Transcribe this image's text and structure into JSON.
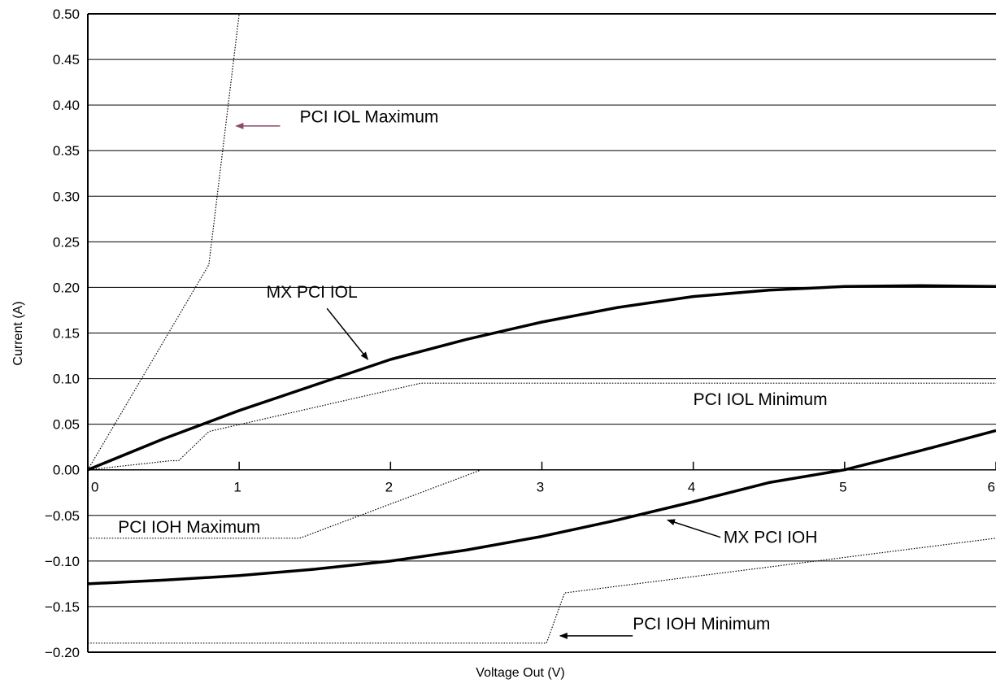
{
  "chart_data": {
    "type": "line",
    "title": "",
    "xlabel": "Voltage Out (V)",
    "ylabel": "Current (A)",
    "xlim": [
      0,
      6
    ],
    "ylim": [
      -0.2,
      0.5
    ],
    "x_ticks": [
      0,
      1,
      2,
      3,
      4,
      5,
      6
    ],
    "x_tick_labels": [
      "0",
      "1",
      "2",
      "3",
      "4",
      "5",
      "6"
    ],
    "y_ticks": [
      0.5,
      0.45,
      0.4,
      0.35,
      0.3,
      0.25,
      0.2,
      0.15,
      0.1,
      0.05,
      0.0,
      -0.05,
      -0.1,
      -0.15,
      -0.2
    ],
    "y_tick_labels": [
      "0.50",
      "0.45",
      "0.40",
      "0.35",
      "0.30",
      "0.25",
      "0.20",
      "0.15",
      "0.10",
      "0.05",
      "0.00",
      "−0.05",
      "−0.10",
      "−0.15",
      "−0.20"
    ],
    "grid": "horizontal",
    "series": [
      {
        "name": "PCI IOL Maximum",
        "style": "dotted",
        "x": [
          0,
          0.8,
          1.0
        ],
        "y": [
          0,
          0.225,
          0.5
        ]
      },
      {
        "name": "MX PCI IOL",
        "style": "solid-bold",
        "x": [
          0,
          0.5,
          1.0,
          1.5,
          2.0,
          2.5,
          3.0,
          3.5,
          4.0,
          4.5,
          5.0,
          5.5,
          6.0
        ],
        "y": [
          0,
          0.034,
          0.065,
          0.093,
          0.121,
          0.143,
          0.162,
          0.178,
          0.19,
          0.197,
          0.201,
          0.202,
          0.201
        ]
      },
      {
        "name": "PCI IOL Minimum",
        "style": "dotted",
        "x": [
          0,
          0.55,
          0.6,
          0.8,
          2.2,
          6.0
        ],
        "y": [
          0,
          0.01,
          0.01,
          0.042,
          0.095,
          0.095
        ]
      },
      {
        "name": "PCI IOH Maximum",
        "style": "dotted",
        "x": [
          0,
          1.4,
          2.6,
          6.0
        ],
        "y": [
          -0.075,
          -0.075,
          0.0,
          0.0
        ]
      },
      {
        "name": "MX PCI IOH",
        "style": "solid-bold",
        "x": [
          0,
          0.5,
          1.0,
          1.5,
          2.0,
          2.5,
          3.0,
          3.5,
          4.0,
          4.5,
          5.0,
          5.5,
          6.0
        ],
        "y": [
          -0.125,
          -0.121,
          -0.116,
          -0.109,
          -0.1,
          -0.088,
          -0.073,
          -0.055,
          -0.035,
          -0.014,
          0.0,
          0.021,
          0.043
        ]
      },
      {
        "name": "PCI IOH Minimum",
        "style": "dotted",
        "x": [
          0,
          3.03,
          3.15,
          6.0
        ],
        "y": [
          -0.19,
          -0.19,
          -0.135,
          -0.075
        ]
      }
    ],
    "annotations": [
      {
        "text": "PCI IOL Maximum",
        "label_x": 1.4,
        "label_y": 0.381,
        "arrow_from": [
          1.27,
          0.377
        ],
        "arrow_to": [
          0.98,
          0.377
        ],
        "arrow_color": "#8a4a6a"
      },
      {
        "text": "MX PCI IOL",
        "label_x": 1.18,
        "label_y": 0.189,
        "arrow_from": [
          1.58,
          0.177
        ],
        "arrow_to": [
          1.85,
          0.121
        ],
        "arrow_color": "#000000"
      },
      {
        "text": "PCI IOL Minimum",
        "label_x": 4.0,
        "label_y": 0.071,
        "arrow_from": null,
        "arrow_to": null,
        "arrow_color": "#000000"
      },
      {
        "text": "PCI IOH Maximum",
        "label_x": 0.2,
        "label_y": -0.069,
        "arrow_from": null,
        "arrow_to": null,
        "arrow_color": "#000000"
      },
      {
        "text": "MX PCI IOH",
        "label_x": 4.2,
        "label_y": -0.08,
        "arrow_from": [
          4.18,
          -0.074
        ],
        "arrow_to": [
          3.83,
          -0.055
        ],
        "arrow_color": "#000000"
      },
      {
        "text": "PCI IOH Minimum",
        "label_x": 3.6,
        "label_y": -0.175,
        "arrow_from": [
          3.6,
          -0.182
        ],
        "arrow_to": [
          3.12,
          -0.182
        ],
        "arrow_color": "#000000"
      }
    ]
  }
}
